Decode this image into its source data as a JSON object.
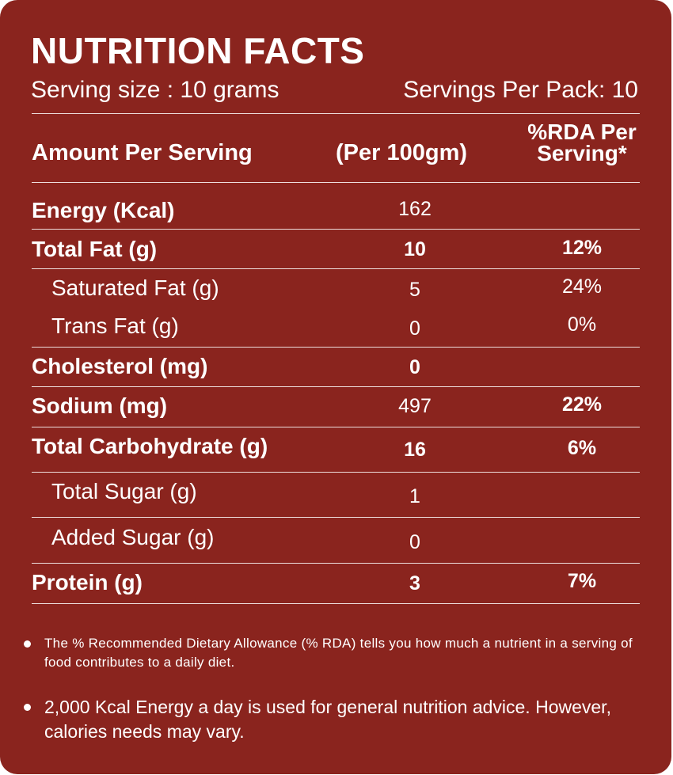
{
  "title": "NUTRITION FACTS",
  "serving_size": "Serving size : 10 grams",
  "servings_per_pack": "Servings Per Pack: 10",
  "headers": {
    "amount": "Amount Per Serving",
    "per100": "(Per 100gm)",
    "rda": "%RDA Per Serving*"
  },
  "rows": [
    {
      "label": "Energy (Kcal)",
      "value": "162",
      "rda": "",
      "bold": false,
      "sub": false
    },
    {
      "label": "Total Fat (g)",
      "value": "10",
      "rda": "12%",
      "bold": true,
      "sub": false
    },
    {
      "label": "Saturated Fat (g)",
      "value": "5",
      "rda": "24%",
      "bold": false,
      "sub": true
    },
    {
      "label": "Trans Fat (g)",
      "value": "0",
      "rda": "0%",
      "bold": false,
      "sub": true
    },
    {
      "label": "Cholesterol (mg)",
      "value": "0",
      "rda": "",
      "bold": true,
      "sub": false
    },
    {
      "label": "Sodium  (mg)",
      "value": "497",
      "rda": "22%",
      "bold": false,
      "sub": false
    },
    {
      "label": "Total Carbohydrate (g)",
      "value": "16",
      "rda": "6%",
      "bold": true,
      "sub": false
    },
    {
      "label": "Total Sugar (g)",
      "value": "1",
      "rda": "",
      "bold": false,
      "sub": true
    },
    {
      "label": "Added Sugar (g)",
      "value": "0",
      "rda": "",
      "bold": false,
      "sub": true
    },
    {
      "label": "Protein (g)",
      "value": "3",
      "rda": "7%",
      "bold": true,
      "sub": false
    }
  ],
  "notes": [
    "The % Recommended Dietary Allowance (% RDA) tells you how much a nutrient in a serving of food contributes to a daily diet.",
    "2,000 Kcal Energy a day is used for general nutrition advice. However, calories needs may vary."
  ]
}
